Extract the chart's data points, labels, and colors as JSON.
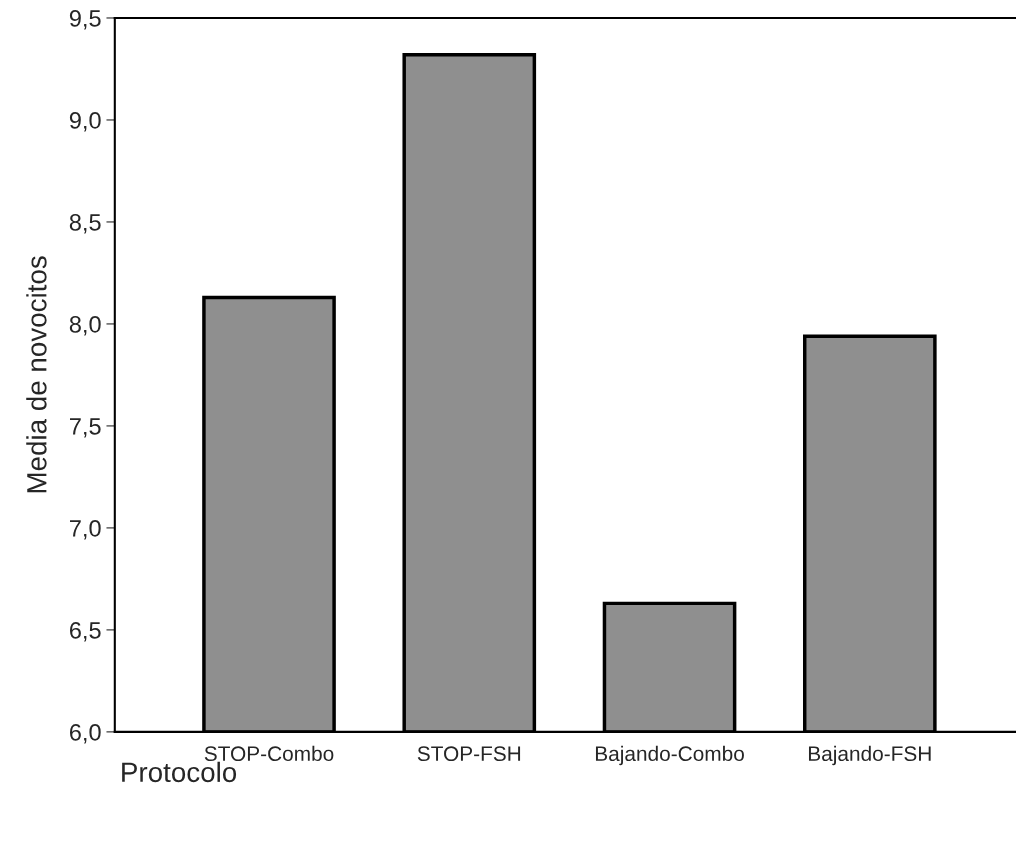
{
  "chart_data": {
    "type": "bar",
    "xlabel": "Protocolo",
    "ylabel": "Media de novocitos",
    "categories": [
      "STOP-Combo",
      "STOP-FSH",
      "Bajando-Combo",
      "Bajando-FSH"
    ],
    "values": [
      8.13,
      9.32,
      6.63,
      7.94
    ],
    "color": "#8f8f8f",
    "ylim": [
      6.0,
      9.5
    ],
    "yticks": [
      {
        "value": 6.0,
        "label": "6,0"
      },
      {
        "value": 6.5,
        "label": "6,5"
      },
      {
        "value": 7.0,
        "label": "7,0"
      },
      {
        "value": 7.5,
        "label": "7,5"
      },
      {
        "value": 8.0,
        "label": "8,0"
      },
      {
        "value": 8.5,
        "label": "8,5"
      },
      {
        "value": 9.0,
        "label": "9,0"
      },
      {
        "value": 9.5,
        "label": "9,5"
      }
    ],
    "grid": false,
    "legend": false
  }
}
